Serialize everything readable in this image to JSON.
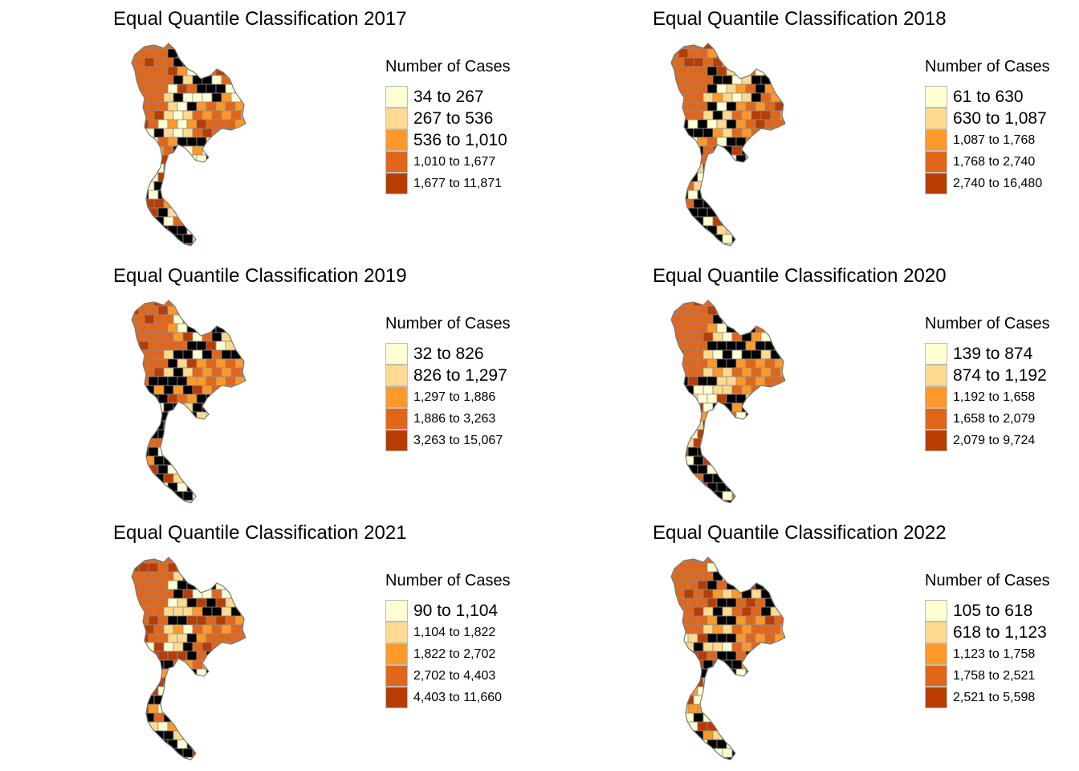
{
  "palette": [
    "#ffffd4",
    "#fed98e",
    "#fe9929",
    "#e2661a",
    "#b73d03"
  ],
  "panels": [
    {
      "title": "Equal Quantile Classification 2017",
      "legend_title": "Number of Cases",
      "classes": [
        "34 to 267",
        "267 to 536",
        "536 to 1,010",
        "1,010 to 1,677",
        "1,677 to 11,871"
      ]
    },
    {
      "title": "Equal Quantile Classification 2018",
      "legend_title": "Number of Cases",
      "classes": [
        "61 to 630",
        "630 to 1,087",
        "1,087 to 1,768",
        "1,768 to 2,740",
        "2,740 to 16,480"
      ]
    },
    {
      "title": "Equal Quantile Classification 2019",
      "legend_title": "Number of Cases",
      "classes": [
        "32 to 826",
        "826 to 1,297",
        "1,297 to 1,886",
        "1,886 to 3,263",
        "3,263 to 15,067"
      ]
    },
    {
      "title": "Equal Quantile Classification 2020",
      "legend_title": "Number of Cases",
      "classes": [
        "139 to 874",
        "874 to 1,192",
        "1,192 to 1,658",
        "1,658 to 2,079",
        "2,079 to 9,724"
      ]
    },
    {
      "title": "Equal Quantile Classification 2021",
      "legend_title": "Number of Cases",
      "classes": [
        "90 to 1,104",
        "1,104 to 1,822",
        "1,822 to 2,702",
        "2,702 to 4,403",
        "4,403 to 11,660"
      ]
    },
    {
      "title": "Equal Quantile Classification 2022",
      "legend_title": "Number of Cases",
      "classes": [
        "105 to 618",
        "618 to 1,123",
        "1,123 to 1,758",
        "1,758 to 2,521",
        "2,521 to 5,598"
      ]
    }
  ]
}
